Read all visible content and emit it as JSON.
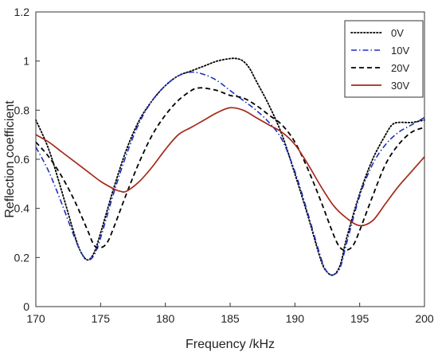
{
  "chart_data": {
    "type": "line",
    "xlabel": "Frequency /kHz",
    "ylabel": "Reflection coefficient",
    "xlim": [
      170,
      200
    ],
    "ylim": [
      0,
      1.2
    ],
    "xticks": [
      170,
      175,
      180,
      185,
      190,
      195,
      200
    ],
    "yticks": [
      0,
      0.2,
      0.4,
      0.6,
      0.8,
      1,
      1.2
    ],
    "xtick_labels": [
      "170",
      "175",
      "180",
      "185",
      "190",
      "195",
      "200"
    ],
    "ytick_labels": [
      "0",
      "0.2",
      "0.4",
      "0.6",
      "0.8",
      "1",
      "1.2"
    ],
    "grid": false,
    "legend_position": "top-right",
    "series": [
      {
        "name": "0V",
        "color": "#000000",
        "style": "dotted",
        "x": [
          170,
          171,
          172,
          173,
          173.5,
          174,
          174.5,
          175,
          176,
          177,
          178,
          179,
          180,
          181,
          182,
          183,
          184,
          185,
          185.5,
          186,
          186.5,
          187,
          188,
          189,
          190,
          191,
          192,
          192.5,
          193,
          193.5,
          194,
          195,
          196,
          197,
          197.5,
          198,
          199,
          200
        ],
        "y": [
          0.76,
          0.64,
          0.47,
          0.29,
          0.22,
          0.19,
          0.22,
          0.3,
          0.48,
          0.64,
          0.76,
          0.84,
          0.9,
          0.94,
          0.96,
          0.98,
          1.0,
          1.01,
          1.01,
          1.0,
          0.97,
          0.92,
          0.82,
          0.7,
          0.54,
          0.37,
          0.19,
          0.14,
          0.13,
          0.17,
          0.28,
          0.46,
          0.6,
          0.7,
          0.74,
          0.75,
          0.75,
          0.76
        ]
      },
      {
        "name": "10V",
        "color": "#1f2fbf",
        "style": "dashdot",
        "x": [
          170,
          171,
          172,
          173,
          173.5,
          174,
          174.5,
          175,
          176,
          177,
          178,
          179,
          180,
          181,
          182,
          183,
          184,
          185,
          186,
          187,
          188,
          189,
          190,
          191,
          192,
          192.5,
          193,
          193.5,
          194,
          195,
          196,
          197,
          198,
          199,
          200
        ],
        "y": [
          0.65,
          0.55,
          0.42,
          0.28,
          0.22,
          0.19,
          0.21,
          0.28,
          0.46,
          0.62,
          0.75,
          0.84,
          0.9,
          0.94,
          0.955,
          0.945,
          0.92,
          0.88,
          0.84,
          0.8,
          0.75,
          0.68,
          0.55,
          0.38,
          0.2,
          0.14,
          0.13,
          0.16,
          0.26,
          0.45,
          0.58,
          0.66,
          0.71,
          0.74,
          0.77
        ]
      },
      {
        "name": "20V",
        "color": "#000000",
        "style": "dashed",
        "x": [
          170,
          171,
          172,
          173,
          174,
          174.5,
          175,
          175.5,
          176,
          177,
          178,
          179,
          180,
          181,
          182,
          182.5,
          183,
          184,
          185,
          186,
          187,
          188,
          189,
          190,
          191,
          192,
          193,
          193.5,
          194,
          194.5,
          195,
          196,
          197,
          198,
          199,
          200
        ],
        "y": [
          0.67,
          0.61,
          0.53,
          0.43,
          0.31,
          0.25,
          0.24,
          0.26,
          0.32,
          0.46,
          0.59,
          0.7,
          0.78,
          0.84,
          0.88,
          0.89,
          0.89,
          0.88,
          0.86,
          0.85,
          0.82,
          0.78,
          0.74,
          0.67,
          0.56,
          0.43,
          0.29,
          0.24,
          0.23,
          0.25,
          0.31,
          0.45,
          0.58,
          0.66,
          0.71,
          0.73
        ]
      },
      {
        "name": "30V",
        "color": "#a52a1a",
        "style": "solid",
        "x": [
          170,
          171,
          172,
          173,
          174,
          175,
          176,
          176.5,
          177,
          178,
          179,
          180,
          181,
          182,
          183,
          184,
          185,
          186,
          187,
          188,
          189,
          190,
          191,
          192,
          193,
          194,
          195,
          196,
          197,
          198,
          199,
          200
        ],
        "y": [
          0.7,
          0.67,
          0.63,
          0.59,
          0.55,
          0.51,
          0.48,
          0.47,
          0.47,
          0.51,
          0.57,
          0.64,
          0.7,
          0.73,
          0.76,
          0.79,
          0.81,
          0.8,
          0.77,
          0.74,
          0.71,
          0.66,
          0.58,
          0.49,
          0.41,
          0.36,
          0.33,
          0.35,
          0.42,
          0.49,
          0.55,
          0.61
        ]
      }
    ]
  }
}
